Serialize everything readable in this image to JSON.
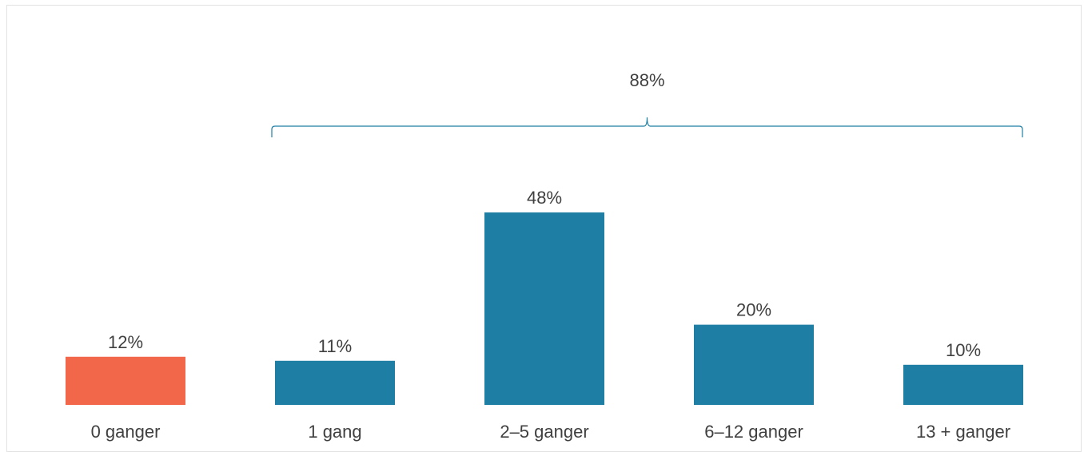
{
  "chart_data": {
    "type": "bar",
    "categories": [
      "0 ganger",
      "1 gang",
      "2–5 ganger",
      "6–12 ganger",
      "13 + ganger"
    ],
    "values": [
      12,
      11,
      48,
      20,
      10
    ],
    "value_labels": [
      "12%",
      "11%",
      "48%",
      "20%",
      "10%"
    ],
    "bar_colors": [
      "#f26649",
      "#1e7ea3",
      "#1e7ea3",
      "#1e7ea3",
      "#1e7ea3"
    ],
    "ylim": [
      0,
      60
    ],
    "grid": false,
    "legend": "none",
    "bracket": {
      "label": "88%",
      "from_category": "1 gang",
      "to_category": "13 + ganger",
      "color": "#1e7ea3"
    }
  }
}
